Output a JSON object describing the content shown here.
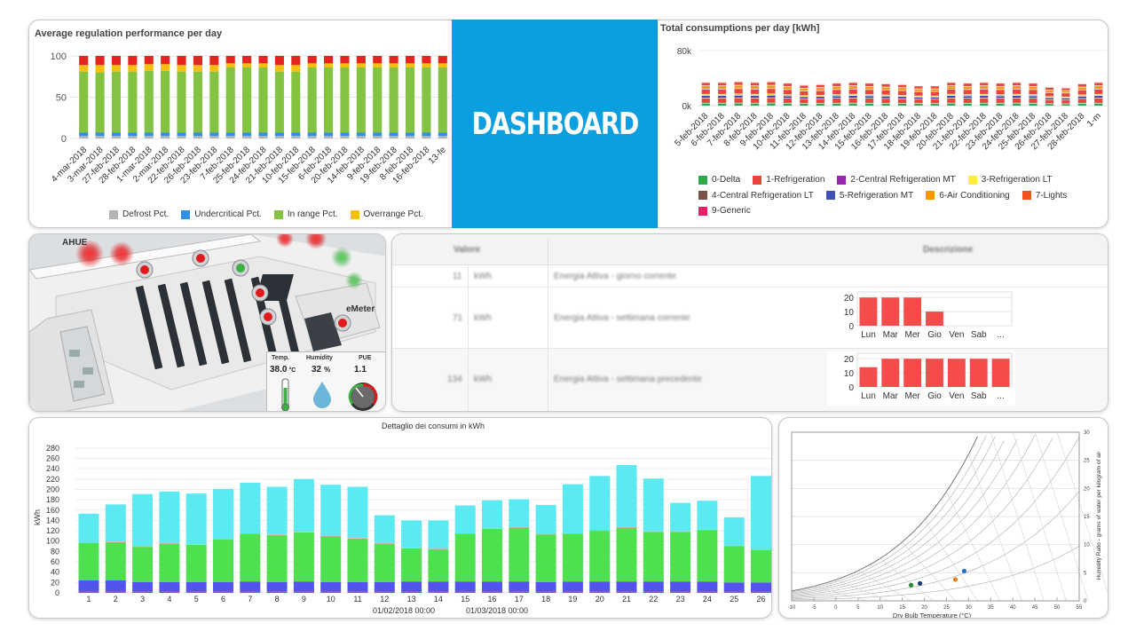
{
  "banner": {
    "title": "DASHBOARD"
  },
  "perf": {
    "title": "Average regulation performance per day",
    "chart_data": {
      "type": "bar",
      "stacked": true,
      "categories": [
        "4-mar-2018",
        "3-mar-2018",
        "27-feb-2018",
        "28-feb-2018",
        "1-mar-2018",
        "2-mar-2018",
        "22-feb-2018",
        "26-feb-2018",
        "23-feb-2018",
        "7-feb-2018",
        "25-feb-2018",
        "24-feb-2018",
        "21-feb-2018",
        "10-feb-2018",
        "15-feb-2018",
        "6-feb-2018",
        "20-feb-2018",
        "14-feb-2018",
        "9-feb-2018",
        "19-feb-2018",
        "8-feb-2018",
        "16-feb-2018",
        "13-fe"
      ],
      "yticks": [
        0,
        50,
        100
      ],
      "ylim": [
        0,
        100
      ],
      "legend_position": "bottom",
      "series": [
        {
          "name": "Defrost Pct.",
          "color": "#b3b3b3",
          "values": [
            3,
            3,
            3,
            3,
            3,
            3,
            3,
            3,
            3,
            3,
            3,
            3,
            3,
            3,
            3,
            3,
            3,
            3,
            3,
            3,
            3,
            3,
            3
          ]
        },
        {
          "name": "Undercritical Pct.",
          "color": "#2f8fe6",
          "values": [
            4,
            4,
            4,
            4,
            4,
            4,
            4,
            4,
            4,
            4,
            4,
            4,
            4,
            4,
            4,
            4,
            4,
            4,
            4,
            4,
            4,
            4,
            4
          ]
        },
        {
          "name": "In range Pct.",
          "color": "#84c341",
          "values": [
            74,
            73,
            74,
            74,
            75,
            75,
            74,
            74,
            74,
            79,
            79,
            79,
            74,
            74,
            79,
            79,
            79,
            79,
            79,
            79,
            79,
            79,
            79
          ]
        },
        {
          "name": "Overrange Pct.",
          "color": "#f6bf10",
          "values": [
            8,
            9,
            8,
            8,
            8,
            8,
            8,
            8,
            8,
            5,
            5,
            5,
            8,
            8,
            5,
            5,
            5,
            5,
            5,
            5,
            5,
            5,
            5
          ]
        },
        {
          "name": "",
          "color": "#e52421",
          "values": [
            11,
            11,
            11,
            11,
            10,
            10,
            11,
            11,
            11,
            9,
            9,
            9,
            11,
            11,
            9,
            9,
            9,
            9,
            9,
            9,
            9,
            9,
            9
          ]
        }
      ]
    }
  },
  "cons": {
    "title": "Total consumptions per day [kWh]",
    "chart_data": {
      "type": "bar",
      "stacked": true,
      "categories": [
        "5-feb-2018",
        "6-feb-2018",
        "7-feb-2018",
        "8-feb-2018",
        "9-feb-2018",
        "10-feb-2018",
        "11-feb-2018",
        "12-feb-2018",
        "13-feb-2018",
        "14-feb-2018",
        "15-feb-2018",
        "16-feb-2018",
        "17-feb-2018",
        "18-feb-2018",
        "19-feb-2018",
        "20-feb-2018",
        "21-feb-2018",
        "22-feb-2018",
        "23-feb-2018",
        "24-feb-2018",
        "25-feb-2018",
        "26-feb-2018",
        "27-feb-2018",
        "28-feb-2018",
        "1-m"
      ],
      "yticks": [
        "0k",
        "80k"
      ],
      "ylim": [
        0,
        80000
      ],
      "totals": [
        34000,
        34000,
        35000,
        34000,
        35000,
        33000,
        30000,
        31000,
        33000,
        34000,
        33000,
        32000,
        31000,
        29000,
        29000,
        34000,
        33000,
        34000,
        33000,
        34000,
        33000,
        27000,
        26000,
        32000,
        34000
      ],
      "series_colors": [
        "#2ea84a",
        "#e8453c",
        "#2c3eb0",
        "#f2c026",
        "#e8453c",
        "#f39a1e",
        "#e8453c"
      ],
      "legend": [
        {
          "name": "0-Delta",
          "color": "#2ea84a"
        },
        {
          "name": "1-Refrigeration",
          "color": "#e8453c"
        },
        {
          "name": "2-Central Refrigeration MT",
          "color": "#9b27b0"
        },
        {
          "name": "3-Refrigeration LT",
          "color": "#ffeb3b"
        },
        {
          "name": "4-Central Refrigeration LT",
          "color": "#795548"
        },
        {
          "name": "5-Refrigeration MT",
          "color": "#3f51b5"
        },
        {
          "name": "6-Air Conditioning",
          "color": "#ff9800"
        },
        {
          "name": "7-Lights",
          "color": "#f4511e"
        },
        {
          "name": "9-Generic",
          "color": "#e91e63"
        }
      ]
    }
  },
  "map": {
    "labels": {
      "ahue": "AHUE",
      "emeter": "eMeter"
    },
    "gauges": {
      "temp_label": "Temp.",
      "temp_value": "38.0",
      "temp_unit": "°C",
      "humidity_label": "Humidity",
      "humidity_value": "32",
      "humidity_unit": "%",
      "pue_label": "PUE",
      "pue_value": "1.1"
    },
    "colors": {
      "alarm": "#e0191b",
      "ok": "#3cb043"
    }
  },
  "table": {
    "headers": {
      "value": "Valore",
      "description": "Descrizione"
    },
    "rows": [
      {
        "value": "11",
        "unit": "kWh",
        "description": "Energia Attiva - giorno corrente"
      },
      {
        "value": "71",
        "unit": "kWh",
        "description": "Energia Attiva - settimana corrente"
      },
      {
        "value": "134",
        "unit": "kWh",
        "description": "Energia Attiva - settimana precedente"
      }
    ],
    "mini_charts": [
      {
        "type": "bar",
        "categories": [
          "Lun",
          "Mar",
          "Mer",
          "Gio",
          "Ven",
          "Sab",
          "..."
        ],
        "values": [
          20,
          20,
          20,
          10,
          0,
          0,
          0
        ],
        "yticks": [
          0,
          10,
          20
        ],
        "ylim": [
          0,
          22
        ],
        "color": "#f44b4b"
      },
      {
        "type": "bar",
        "categories": [
          "Lun",
          "Mar",
          "Mer",
          "Gio",
          "Ven",
          "Sab",
          "..."
        ],
        "values": [
          14,
          20,
          20,
          20,
          20,
          20,
          20
        ],
        "yticks": [
          0,
          10,
          20
        ],
        "ylim": [
          0,
          22
        ],
        "color": "#f44b4b"
      }
    ]
  },
  "detail": {
    "chart_data": {
      "type": "bar",
      "stacked": true,
      "title": "Dettaglio dei consumi in kWh",
      "ylabel": "kWh",
      "xlabels": [
        "01/02/2018 00:00",
        "01/03/2018 00:00"
      ],
      "categories": [
        "1",
        "2",
        "3",
        "4",
        "5",
        "6",
        "7",
        "8",
        "9",
        "10",
        "11",
        "12",
        "13",
        "14",
        "15",
        "16",
        "17",
        "18",
        "19",
        "20",
        "21",
        "22",
        "23",
        "24",
        "25",
        "26"
      ],
      "yticks": [
        0,
        20,
        40,
        60,
        80,
        100,
        120,
        140,
        160,
        180,
        200,
        220,
        240,
        260,
        280
      ],
      "ylim": [
        0,
        290
      ],
      "series": [
        {
          "color": "#e33",
          "values": [
            2,
            2,
            2,
            2,
            2,
            2,
            2,
            2,
            2,
            2,
            2,
            2,
            2,
            2,
            2,
            2,
            2,
            2,
            2,
            2,
            2,
            2,
            2,
            2,
            2,
            2
          ]
        },
        {
          "color": "#5353ee",
          "values": [
            22,
            22,
            19,
            19,
            19,
            19,
            20,
            19,
            20,
            19,
            19,
            19,
            20,
            20,
            20,
            20,
            20,
            19,
            20,
            20,
            20,
            20,
            20,
            20,
            18,
            18
          ]
        },
        {
          "color": "#4fe04f",
          "values": [
            72,
            74,
            68,
            74,
            72,
            82,
            92,
            91,
            95,
            88,
            84,
            74,
            64,
            62,
            92,
            102,
            104,
            92,
            92,
            98,
            104,
            96,
            96,
            99,
            70,
            63
          ]
        },
        {
          "color": "#ff9999",
          "values": [
            1,
            1,
            1,
            1,
            1,
            1,
            1,
            1,
            1,
            1,
            1,
            1,
            1,
            1,
            1,
            1,
            1,
            1,
            1,
            1,
            1,
            1,
            1,
            1,
            1,
            1
          ]
        },
        {
          "color": "#5beaf2",
          "values": [
            56,
            72,
            101,
            100,
            98,
            97,
            98,
            92,
            102,
            99,
            99,
            54,
            53,
            55,
            54,
            54,
            54,
            56,
            95,
            105,
            120,
            102,
            55,
            56,
            55,
            142
          ]
        }
      ]
    }
  },
  "psy": {
    "xlabel": "Dry Bulb Temperature (°C)",
    "ylabel": "Humidity Ratio - grams of water per kilogram of air",
    "xticks": [
      -10,
      -5,
      0,
      5,
      10,
      15,
      20,
      25,
      30,
      35,
      40,
      45,
      50,
      55
    ],
    "yticks": [
      0,
      5,
      10,
      15,
      20,
      25,
      30
    ],
    "points": [
      {
        "t": 17,
        "w": 2.8,
        "color": "#2c8a3c"
      },
      {
        "t": 19,
        "w": 3.1,
        "color": "#1d3a7a"
      },
      {
        "t": 27,
        "w": 3.8,
        "color": "#e67e22"
      },
      {
        "t": 29,
        "w": 5.3,
        "color": "#1f6fd1"
      }
    ]
  }
}
